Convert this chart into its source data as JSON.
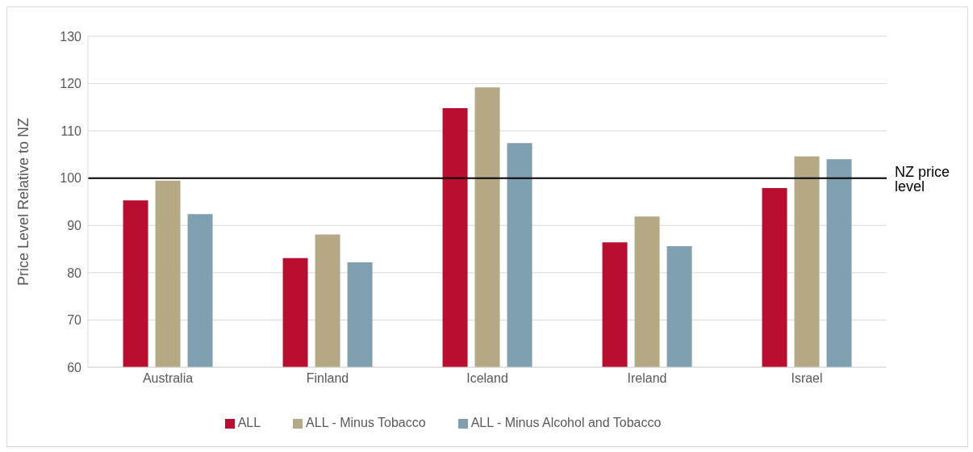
{
  "chart_data": {
    "type": "bar",
    "ylabel": "Price Level Relative to NZ",
    "categories": [
      "Australia",
      "Finland",
      "Iceland",
      "Ireland",
      "Israel"
    ],
    "series": [
      {
        "name": "ALL",
        "color": "#b90e2f",
        "values": [
          95.3,
          83.1,
          114.8,
          86.4,
          97.9
        ]
      },
      {
        "name": "ALL - Minus Tobacco",
        "color": "#b5a885",
        "values": [
          99.5,
          88.1,
          119.2,
          91.9,
          104.6
        ]
      },
      {
        "name": "ALL - Minus Alcohol and Tobacco",
        "color": "#7fa0b0",
        "values": [
          92.4,
          82.2,
          107.4,
          85.6,
          104.0
        ]
      }
    ],
    "ylim": [
      60,
      130
    ],
    "yticks": [
      60,
      70,
      80,
      90,
      100,
      110,
      120,
      130
    ],
    "grid": "y",
    "legend": "bottom",
    "ref_lines": [
      {
        "axis": "y",
        "value": 100,
        "label": "NZ price level",
        "color": "#000000"
      }
    ]
  }
}
